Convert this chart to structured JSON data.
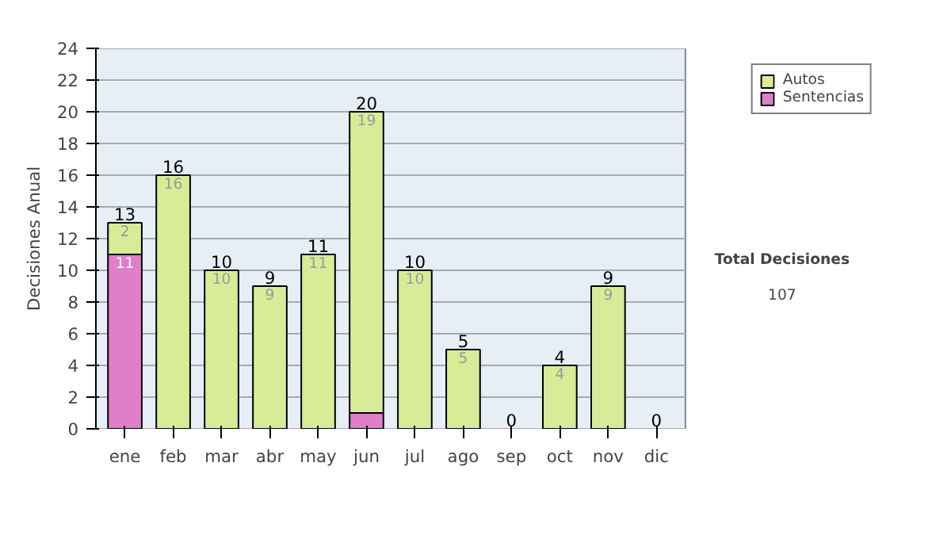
{
  "chart_data": {
    "type": "bar",
    "stacked": true,
    "ylabel": "Decisiones Anual",
    "categories": [
      "ene",
      "feb",
      "mar",
      "abr",
      "may",
      "jun",
      "jul",
      "ago",
      "sep",
      "oct",
      "nov",
      "dic"
    ],
    "series": [
      {
        "name": "Sentencias",
        "color": "#e07ec8",
        "values": [
          11,
          0,
          0,
          0,
          0,
          1,
          0,
          0,
          0,
          0,
          0,
          0
        ],
        "value_labels": [
          "11",
          null,
          null,
          null,
          null,
          null,
          null,
          null,
          null,
          null,
          null,
          null
        ]
      },
      {
        "name": "Autos",
        "color": "#d8ec98",
        "values": [
          2,
          16,
          10,
          9,
          11,
          19,
          10,
          5,
          0,
          4,
          9,
          0
        ],
        "value_labels": [
          "2",
          "16",
          "10",
          "9",
          "11",
          "19",
          "10",
          "5",
          null,
          "4",
          "9",
          null
        ]
      }
    ],
    "totals": [
      "13",
      "16",
      "10",
      "9",
      "11",
      "20",
      "10",
      "5",
      "0",
      "4",
      "9",
      "0"
    ],
    "ylim": [
      0,
      24
    ],
    "yticks": [
      0,
      2,
      4,
      6,
      8,
      10,
      12,
      14,
      16,
      18,
      20,
      22,
      24
    ],
    "grid": "y",
    "legend": "right",
    "annotations": [
      "Total Decisiones",
      "107"
    ]
  }
}
